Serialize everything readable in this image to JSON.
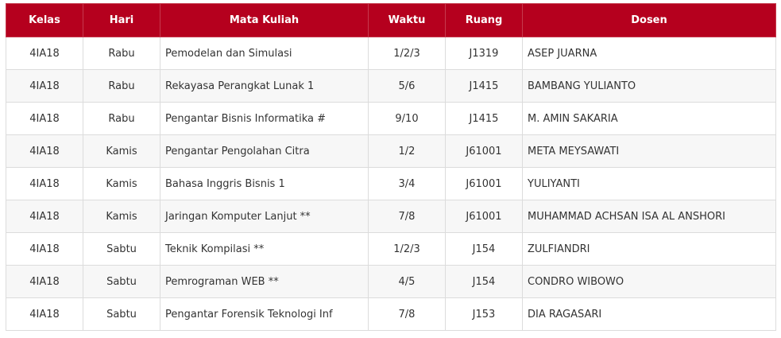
{
  "colors": {
    "header_bg": "#b5001e",
    "header_text": "#ffffff",
    "row_alt_bg": "#f7f7f7",
    "border": "#dcdcdc",
    "text": "#333333"
  },
  "table": {
    "headers": [
      "Kelas",
      "Hari",
      "Mata Kuliah",
      "Waktu",
      "Ruang",
      "Dosen"
    ],
    "rows": [
      [
        "4IA18",
        "Rabu",
        "Pemodelan dan Simulasi",
        "1/2/3",
        "J1319",
        "ASEP JUARNA"
      ],
      [
        "4IA18",
        "Rabu",
        "Rekayasa Perangkat Lunak 1",
        "5/6",
        "J1415",
        "BAMBANG YULIANTO"
      ],
      [
        "4IA18",
        "Rabu",
        "Pengantar Bisnis Informatika #",
        "9/10",
        "J1415",
        "M. AMIN SAKARIA"
      ],
      [
        "4IA18",
        "Kamis",
        "Pengantar Pengolahan Citra",
        "1/2",
        "J61001",
        "META MEYSAWATI"
      ],
      [
        "4IA18",
        "Kamis",
        "Bahasa Inggris Bisnis 1",
        "3/4",
        "J61001",
        "YULIYANTI"
      ],
      [
        "4IA18",
        "Kamis",
        "Jaringan Komputer Lanjut **",
        "7/8",
        "J61001",
        "MUHAMMAD ACHSAN ISA AL ANSHORI"
      ],
      [
        "4IA18",
        "Sabtu",
        "Teknik Kompilasi **",
        "1/2/3",
        "J154",
        "ZULFIANDRI"
      ],
      [
        "4IA18",
        "Sabtu",
        "Pemrograman WEB **",
        "4/5",
        "J154",
        "CONDRO WIBOWO"
      ],
      [
        "4IA18",
        "Sabtu",
        "Pengantar Forensik Teknologi Inf",
        "7/8",
        "J153",
        "DIA RAGASARI"
      ]
    ]
  }
}
